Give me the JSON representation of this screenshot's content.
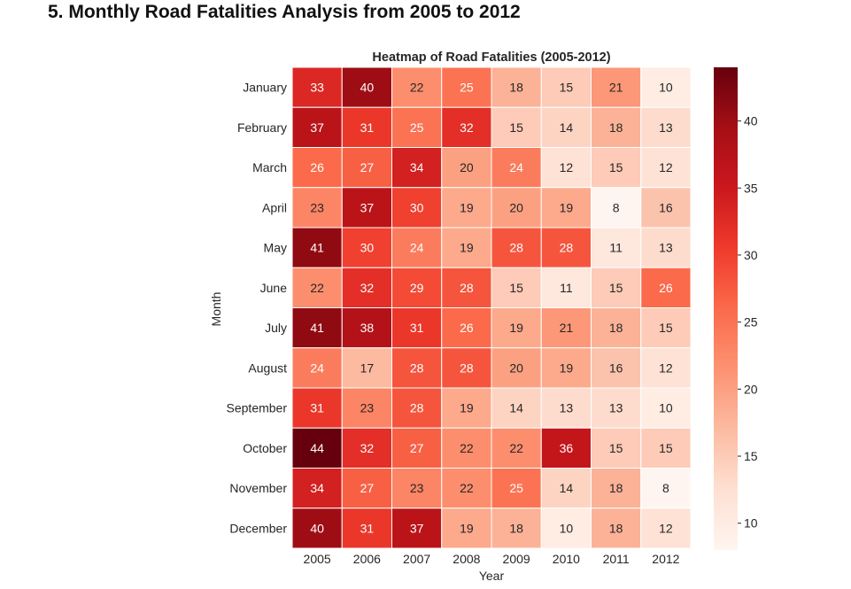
{
  "page": {
    "heading": "5. Monthly Road Fatalities Analysis from 2005 to 2012"
  },
  "chart_data": {
    "type": "heatmap",
    "title": "Heatmap of Road Fatalities (2005-2012)",
    "xlabel": "Year",
    "ylabel": "Month",
    "x": [
      "2005",
      "2006",
      "2007",
      "2008",
      "2009",
      "2010",
      "2011",
      "2012"
    ],
    "y": [
      "January",
      "February",
      "March",
      "April",
      "May",
      "June",
      "July",
      "August",
      "September",
      "October",
      "November",
      "December"
    ],
    "values": [
      [
        33,
        40,
        22,
        25,
        18,
        15,
        21,
        10
      ],
      [
        37,
        31,
        25,
        32,
        15,
        14,
        18,
        13
      ],
      [
        26,
        27,
        34,
        20,
        24,
        12,
        15,
        12
      ],
      [
        23,
        37,
        30,
        19,
        20,
        19,
        8,
        16
      ],
      [
        41,
        30,
        24,
        19,
        28,
        28,
        11,
        13
      ],
      [
        22,
        32,
        29,
        28,
        15,
        11,
        15,
        26
      ],
      [
        41,
        38,
        31,
        26,
        19,
        21,
        18,
        15
      ],
      [
        24,
        17,
        28,
        28,
        20,
        19,
        16,
        12
      ],
      [
        31,
        23,
        28,
        19,
        14,
        13,
        13,
        10
      ],
      [
        44,
        32,
        27,
        22,
        22,
        36,
        15,
        15
      ],
      [
        34,
        27,
        23,
        22,
        25,
        14,
        18,
        8
      ],
      [
        40,
        31,
        37,
        19,
        18,
        10,
        18,
        12
      ]
    ],
    "colormap": "Reds",
    "color_range": [
      8,
      44
    ],
    "colorbar": {
      "ticks": [
        10,
        15,
        20,
        25,
        30,
        35,
        40
      ],
      "position": "right"
    },
    "cell_border_color": "#ffffff",
    "annotations": true
  }
}
